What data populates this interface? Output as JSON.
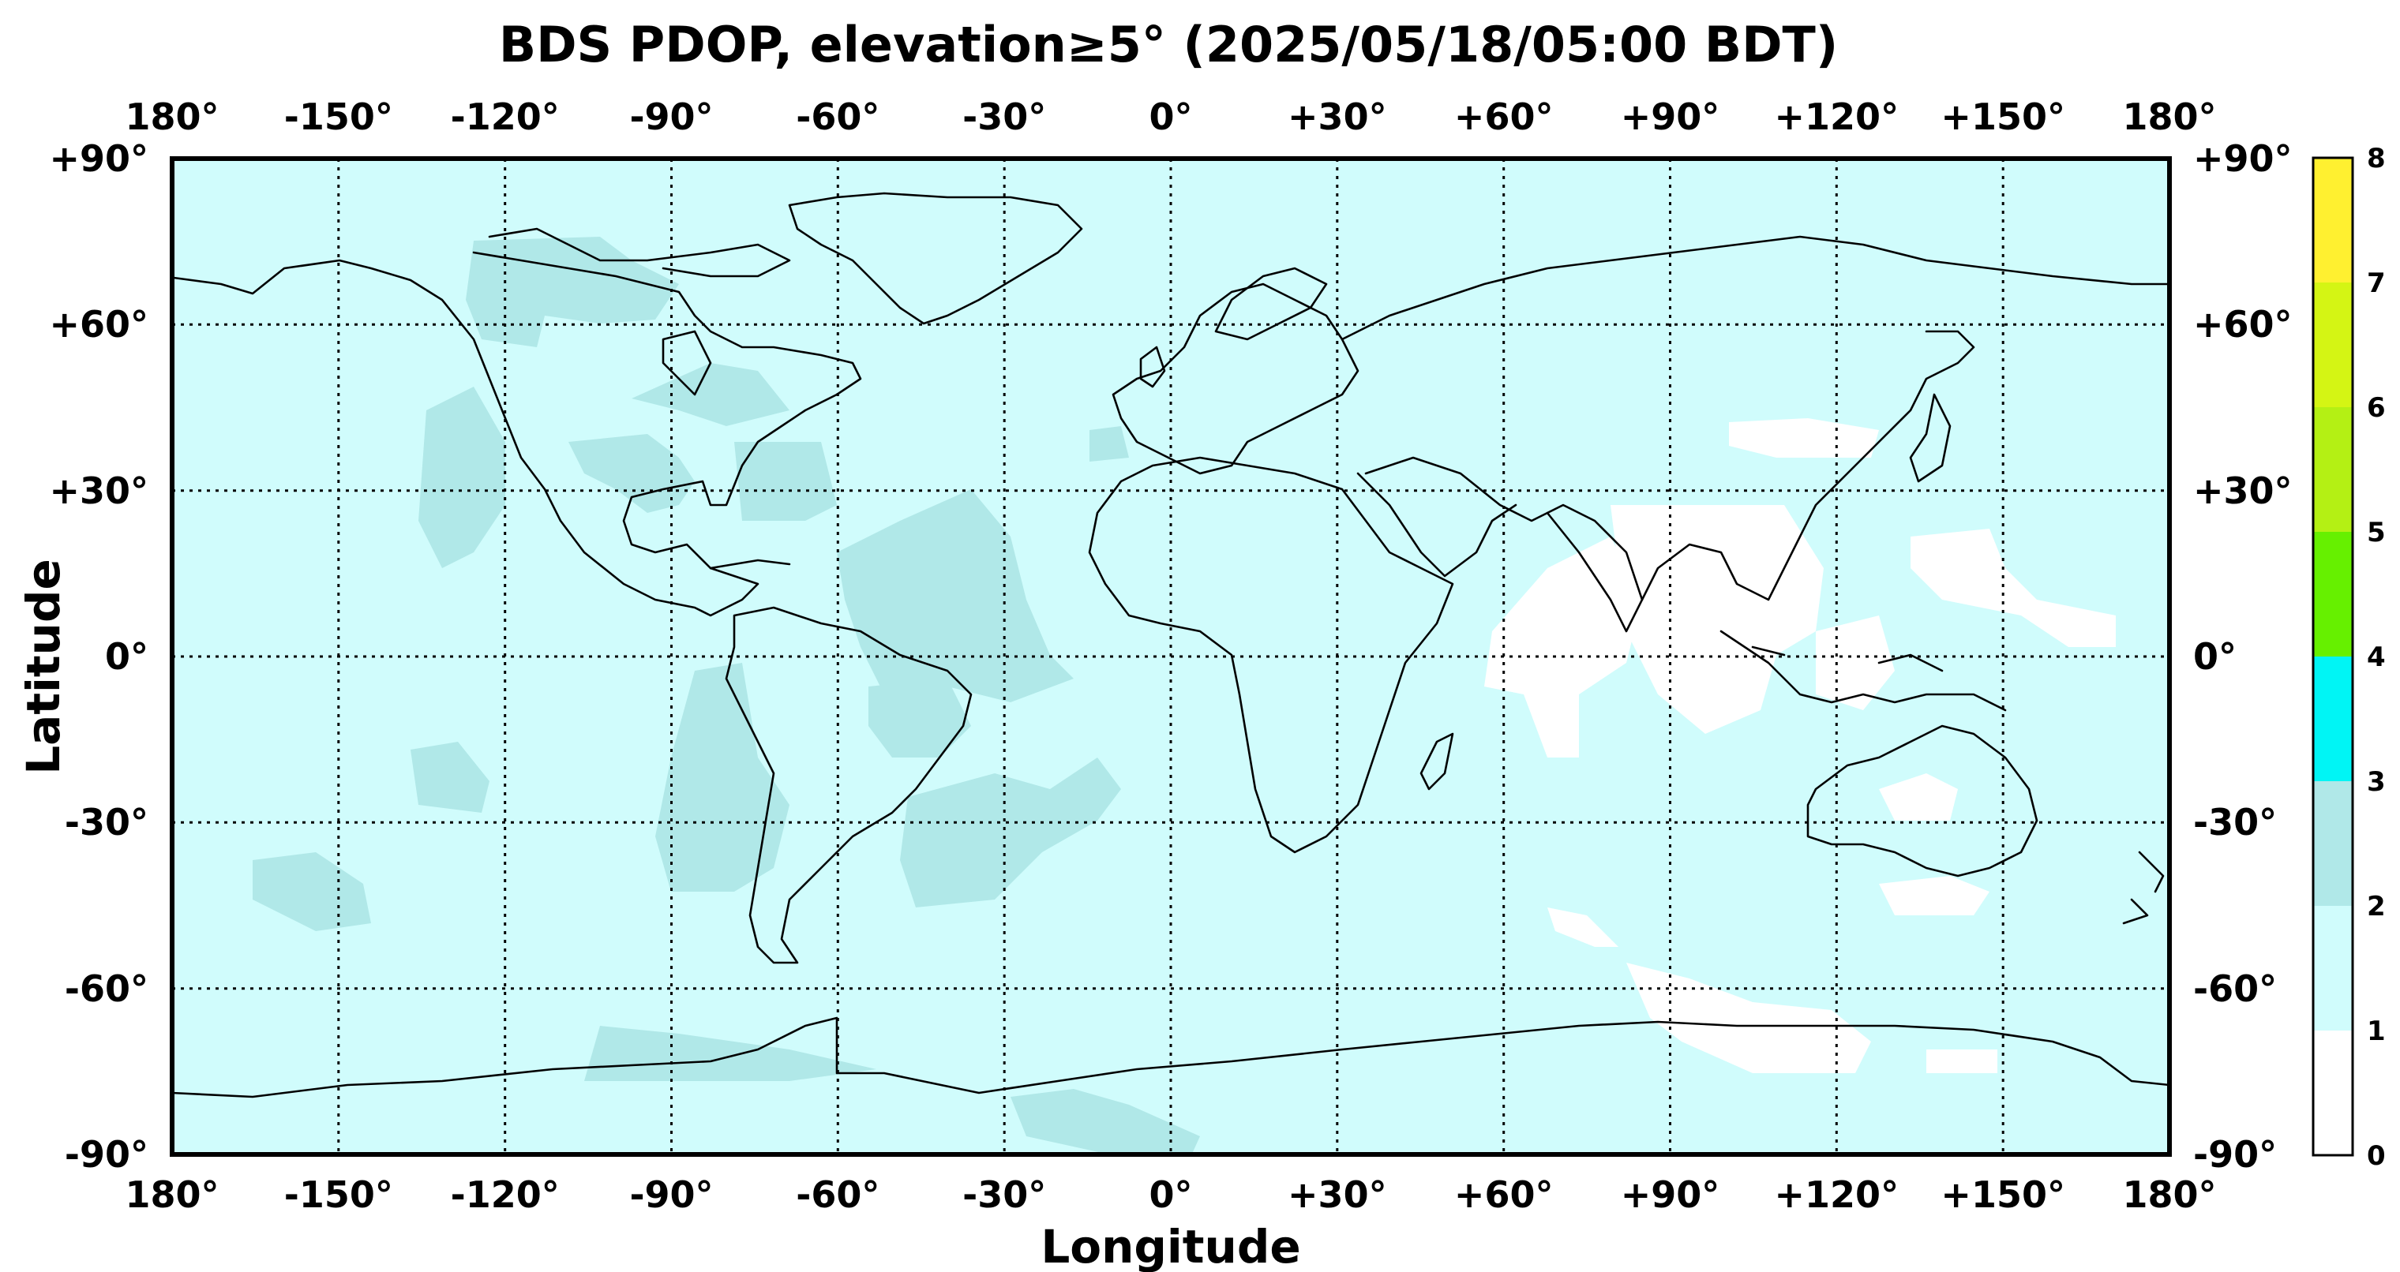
{
  "title": "BDS PDOP, elevation≥5° (2025/05/18/05:00 BDT)",
  "xlabel": "Longitude",
  "ylabel": "Latitude",
  "lon_ticks": [
    "180°",
    "-150°",
    "-120°",
    "-90°",
    "-60°",
    "-30°",
    "0°",
    "+30°",
    "+60°",
    "+90°",
    "+120°",
    "+150°",
    "180°"
  ],
  "lat_ticks": [
    "+90°",
    "+60°",
    "+30°",
    "0°",
    "-30°",
    "-60°",
    "-90°"
  ],
  "colorbar": {
    "ticks": [
      "0",
      "1",
      "2",
      "3",
      "4",
      "5",
      "6",
      "7",
      "8"
    ],
    "bands": [
      {
        "range": [
          0,
          1
        ],
        "color": "#ffffff"
      },
      {
        "range": [
          1,
          2
        ],
        "color": "#d0fcfc"
      },
      {
        "range": [
          2,
          3
        ],
        "color": "#b0e8e8"
      },
      {
        "range": [
          3,
          4
        ],
        "color": "#00f5f5"
      },
      {
        "range": [
          4,
          5
        ],
        "color": "#66f000"
      },
      {
        "range": [
          5,
          6
        ],
        "color": "#b4f014"
      },
      {
        "range": [
          6,
          7
        ],
        "color": "#d4f514"
      },
      {
        "range": [
          7,
          8
        ],
        "color": "#fff030"
      }
    ]
  },
  "map": {
    "background_pdop_band": "1-2",
    "regions_pdop_2_3": [
      "western North America",
      "northern Canada",
      "Atlantic Ocean near equator",
      "central South America",
      "South Atlantic",
      "central and south Pacific",
      "Antarctic coast west"
    ],
    "regions_pdop_0_1": [
      "Indian Ocean",
      "South and Southeast Asia",
      "western Pacific",
      "north Pacific near Japan",
      "Southern Ocean south of Australia"
    ]
  }
}
